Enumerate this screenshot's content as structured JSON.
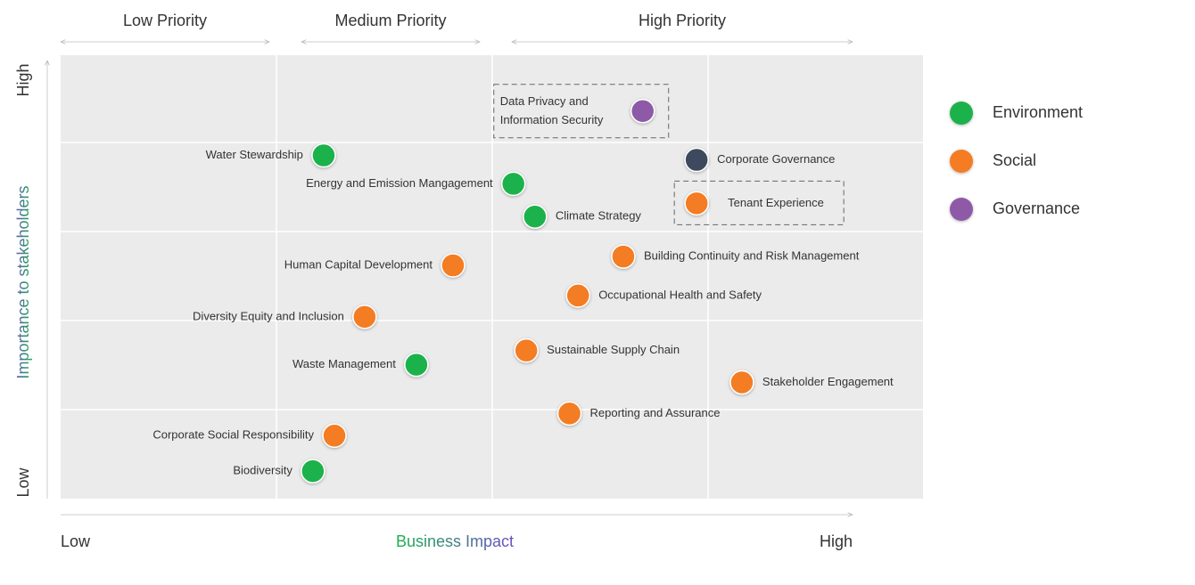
{
  "chart_data": {
    "type": "scatter",
    "priority_headers": [
      "Low Priority",
      "Medium Priority",
      "High Priority"
    ],
    "x_label": "Business Impact",
    "y_label": "Importance to stakeholders",
    "x_end_labels": [
      "Low",
      "High"
    ],
    "y_end_labels": [
      "Low",
      "High"
    ],
    "xlim": [
      0,
      4
    ],
    "ylim": [
      0,
      5
    ],
    "grid": true,
    "series": [
      {
        "name": "Environment",
        "color": "#1db24c",
        "labels": [
          "Water Stewardship",
          "Energy and Emission Mangagement",
          "Climate Strategy",
          "Waste Management",
          "Biodiversity"
        ],
        "x": [
          1.22,
          2.1,
          2.2,
          1.65,
          1.17
        ],
        "values": [
          3.87,
          3.55,
          3.18,
          1.51,
          0.31
        ]
      },
      {
        "name": "Social",
        "color": "#f47b20",
        "labels": [
          "Tenant Experience",
          "Human Capital Development",
          "Building Continuity and Risk Management",
          "Occupational Health and Safety",
          "Diversity Equity and Inclusion",
          "Sustainable Supply Chain",
          "Stakeholder Engagement",
          "Reporting and Assurance",
          "Corporate Social Responsibility"
        ],
        "x": [
          2.95,
          1.82,
          2.61,
          2.4,
          1.41,
          2.16,
          3.16,
          2.36,
          1.27
        ],
        "values": [
          3.33,
          2.63,
          2.73,
          2.29,
          2.05,
          1.67,
          1.31,
          0.96,
          0.71
        ],
        "highlighted": [
          true,
          false,
          false,
          false,
          false,
          false,
          false,
          false,
          false
        ]
      },
      {
        "name": "Governance",
        "color": "#8e5aa8",
        "labels": [
          "Data Privacy and Information Security",
          "Corporate Governance"
        ],
        "x": [
          2.7,
          2.95
        ],
        "values": [
          4.37,
          3.82
        ],
        "point_colors": [
          "#8e5aa8",
          "#3e4a5c"
        ],
        "highlighted": [
          true,
          false
        ]
      }
    ]
  }
}
